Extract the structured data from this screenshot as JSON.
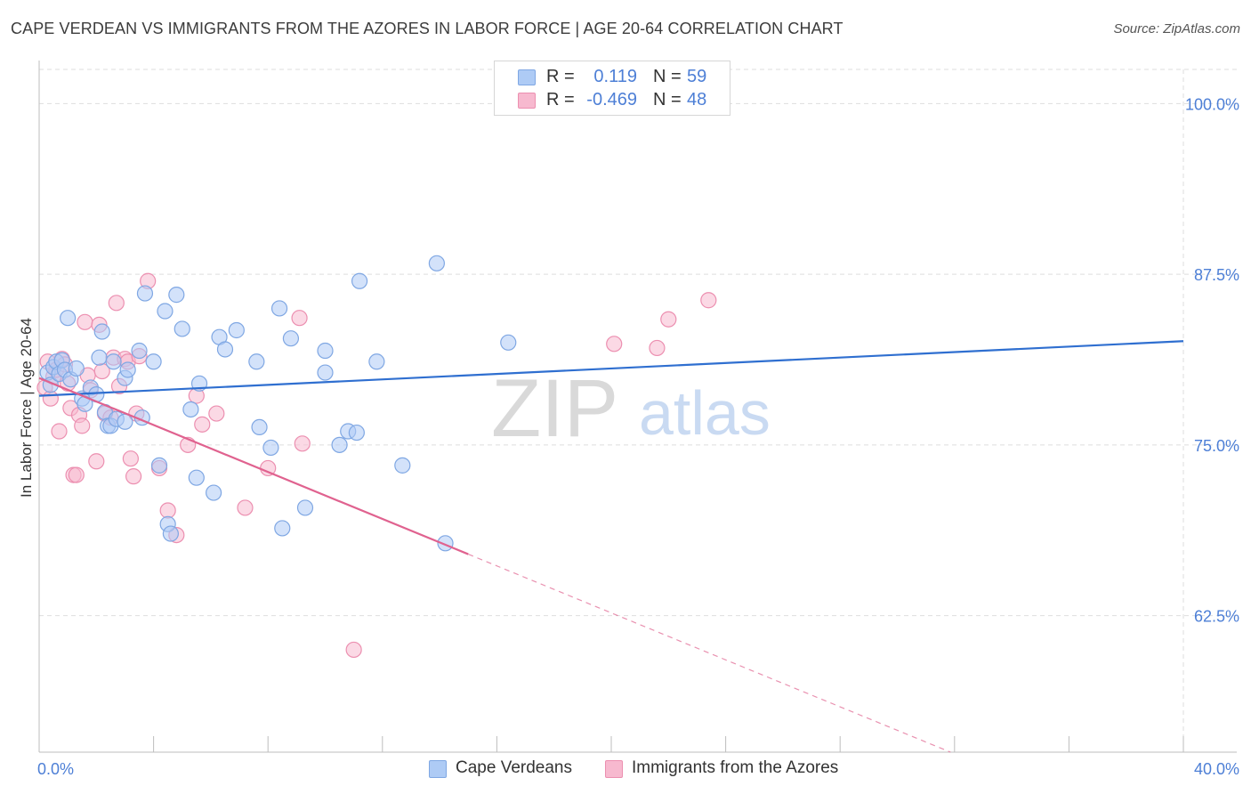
{
  "header": {
    "title": "CAPE VERDEAN VS IMMIGRANTS FROM THE AZORES IN LABOR FORCE | AGE 20-64 CORRELATION CHART",
    "source": "Source: ZipAtlas.com"
  },
  "legend": {
    "rows": [
      {
        "r_label": "R =",
        "r_value": "0.119",
        "n_label": "N =",
        "n_value": "59"
      },
      {
        "r_label": "R =",
        "r_value": "-0.469",
        "n_label": "N =",
        "n_value": "48"
      }
    ],
    "bottom": [
      "Cape Verdeans",
      "Immigrants from the Azores"
    ]
  },
  "watermark": {
    "zip": "ZIP",
    "atlas": "atlas"
  },
  "colors": {
    "blue_fill": "#aecbf5",
    "blue_stroke": "#7fa7e3",
    "blue_line": "#2f6fd0",
    "pink_fill": "#f7b9cf",
    "pink_stroke": "#ec8fb0",
    "pink_line": "#e0628f",
    "tick_label": "#4d7fd6",
    "grid": "#dedede"
  },
  "chart_data": {
    "type": "scatter",
    "title": "CAPE VERDEAN VS IMMIGRANTS FROM THE AZORES IN LABOR FORCE | AGE 20-64 CORRELATION CHART",
    "xlabel": "",
    "ylabel": "In Labor Force | Age 20-64",
    "xlim": [
      0,
      40
    ],
    "ylim": [
      52.5,
      102.5
    ],
    "x_tick_labels": [
      "0.0%",
      "40.0%"
    ],
    "y_ticks": [
      62.5,
      75.0,
      87.5,
      100.0
    ],
    "y_tick_labels": [
      "62.5%",
      "75.0%",
      "87.5%",
      "100.0%"
    ],
    "grid": true,
    "legend_position": "top-center",
    "series": [
      {
        "name": "Cape Verdeans",
        "color": "#aecbf5",
        "trend": {
          "x": [
            0,
            40
          ],
          "y": [
            78.6,
            82.6
          ]
        },
        "points": [
          [
            0.3,
            80.3
          ],
          [
            0.4,
            79.4
          ],
          [
            0.5,
            80.7
          ],
          [
            0.6,
            81.1
          ],
          [
            0.7,
            80.2
          ],
          [
            0.8,
            81.2
          ],
          [
            0.9,
            80.5
          ],
          [
            1.0,
            84.3
          ],
          [
            1.1,
            79.8
          ],
          [
            1.3,
            80.6
          ],
          [
            1.5,
            78.4
          ],
          [
            1.6,
            78.0
          ],
          [
            1.8,
            79.2
          ],
          [
            2.0,
            78.7
          ],
          [
            2.1,
            81.4
          ],
          [
            2.2,
            83.3
          ],
          [
            2.3,
            77.4
          ],
          [
            2.4,
            76.4
          ],
          [
            2.5,
            76.4
          ],
          [
            2.6,
            81.1
          ],
          [
            2.7,
            76.9
          ],
          [
            3.0,
            79.9
          ],
          [
            3.0,
            76.7
          ],
          [
            3.1,
            80.5
          ],
          [
            3.5,
            81.9
          ],
          [
            3.6,
            77.0
          ],
          [
            3.7,
            86.1
          ],
          [
            4.0,
            81.1
          ],
          [
            4.2,
            73.5
          ],
          [
            4.4,
            84.8
          ],
          [
            4.5,
            69.2
          ],
          [
            4.6,
            68.5
          ],
          [
            4.8,
            86.0
          ],
          [
            5.0,
            83.5
          ],
          [
            5.3,
            77.6
          ],
          [
            5.5,
            72.6
          ],
          [
            5.6,
            79.5
          ],
          [
            6.1,
            71.5
          ],
          [
            6.3,
            82.9
          ],
          [
            6.5,
            82.0
          ],
          [
            6.9,
            83.4
          ],
          [
            7.6,
            81.1
          ],
          [
            7.7,
            76.3
          ],
          [
            8.1,
            74.8
          ],
          [
            8.4,
            85.0
          ],
          [
            8.5,
            68.9
          ],
          [
            8.8,
            82.8
          ],
          [
            9.3,
            70.4
          ],
          [
            10.0,
            80.3
          ],
          [
            10.0,
            81.9
          ],
          [
            10.5,
            75.0
          ],
          [
            10.8,
            76.0
          ],
          [
            11.1,
            75.9
          ],
          [
            11.2,
            87.0
          ],
          [
            11.8,
            81.1
          ],
          [
            12.7,
            73.5
          ],
          [
            13.9,
            88.3
          ],
          [
            14.2,
            67.8
          ],
          [
            16.4,
            82.5
          ]
        ]
      },
      {
        "name": "Immigrants from the Azores",
        "color": "#f7b9cf",
        "trend": {
          "x": [
            0,
            15.0
          ],
          "y": [
            79.9,
            67.0
          ]
        },
        "points": [
          [
            0.2,
            79.2
          ],
          [
            0.3,
            81.1
          ],
          [
            0.4,
            78.4
          ],
          [
            0.5,
            80.0
          ],
          [
            0.6,
            80.5
          ],
          [
            0.7,
            76.0
          ],
          [
            0.8,
            81.3
          ],
          [
            0.9,
            80.9
          ],
          [
            1.0,
            79.5
          ],
          [
            1.1,
            77.7
          ],
          [
            1.2,
            72.8
          ],
          [
            1.3,
            72.8
          ],
          [
            1.4,
            77.2
          ],
          [
            1.5,
            76.4
          ],
          [
            1.6,
            84.0
          ],
          [
            1.7,
            80.1
          ],
          [
            1.8,
            79.0
          ],
          [
            2.0,
            73.8
          ],
          [
            2.1,
            83.8
          ],
          [
            2.2,
            80.4
          ],
          [
            2.3,
            77.3
          ],
          [
            2.5,
            77.0
          ],
          [
            2.6,
            81.4
          ],
          [
            2.7,
            85.4
          ],
          [
            2.8,
            79.3
          ],
          [
            3.0,
            81.3
          ],
          [
            3.1,
            81.1
          ],
          [
            3.2,
            74.0
          ],
          [
            3.3,
            72.7
          ],
          [
            3.4,
            77.3
          ],
          [
            3.5,
            81.5
          ],
          [
            3.8,
            87.0
          ],
          [
            4.2,
            73.3
          ],
          [
            4.5,
            70.2
          ],
          [
            4.8,
            68.4
          ],
          [
            5.2,
            75.0
          ],
          [
            5.5,
            78.6
          ],
          [
            5.7,
            76.5
          ],
          [
            6.2,
            77.3
          ],
          [
            7.2,
            70.4
          ],
          [
            8.0,
            73.3
          ],
          [
            9.1,
            84.3
          ],
          [
            9.2,
            75.1
          ],
          [
            11.0,
            60.0
          ],
          [
            23.4,
            85.6
          ],
          [
            21.6,
            82.1
          ],
          [
            20.1,
            82.4
          ],
          [
            22.0,
            84.2
          ]
        ]
      }
    ]
  }
}
